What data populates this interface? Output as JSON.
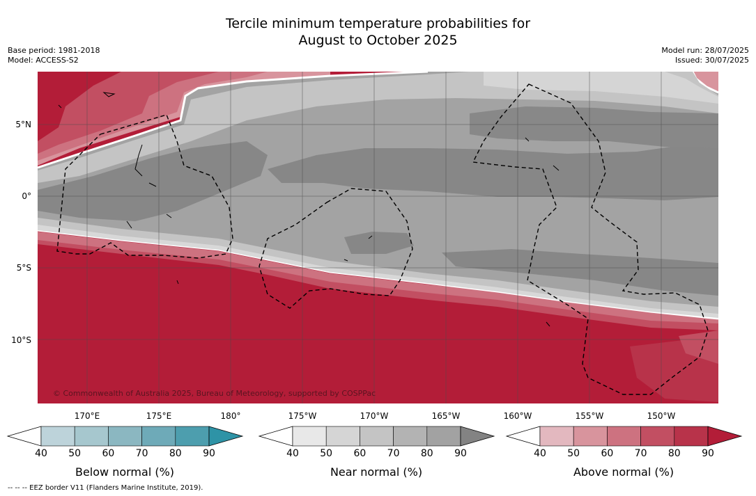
{
  "title_line1": "Tercile minimum temperature probabilities for",
  "title_line2": "August to October 2025",
  "meta": {
    "base_period": "Base period: 1981-2018",
    "model": "Model: ACCESS-S2",
    "model_run": "Model run: 28/07/2025",
    "issued": "Issued: 30/07/2025"
  },
  "lat_labels": [
    "5°N",
    "0°",
    "5°S",
    "10°S"
  ],
  "lon_labels": [
    "170°E",
    "175°E",
    "180°",
    "175°W",
    "170°W",
    "165°W",
    "160°W",
    "155°W",
    "150°W"
  ],
  "credit": "© Commonwealth of Australia 2025, Bureau of Meteorology, supported by COSPPac",
  "colorbars": [
    {
      "title": "Below normal (%)",
      "ticks": [
        "40",
        "50",
        "60",
        "70",
        "80",
        "90"
      ],
      "colors": [
        "#ffffff",
        "#bdd3da",
        "#a6c7ce",
        "#8bb7c1",
        "#6eaab8",
        "#4d9eae",
        "#2e93a6"
      ]
    },
    {
      "title": "Near normal (%)",
      "ticks": [
        "40",
        "50",
        "60",
        "70",
        "80",
        "90"
      ],
      "colors": [
        "#ffffff",
        "#e8e8e8",
        "#d5d5d5",
        "#c4c4c4",
        "#b3b3b3",
        "#a2a2a2",
        "#838383"
      ]
    },
    {
      "title": "Above normal (%)",
      "ticks": [
        "40",
        "50",
        "60",
        "70",
        "80",
        "90"
      ],
      "colors": [
        "#ffffff",
        "#e3b8bf",
        "#d8949d",
        "#cd7280",
        "#c24f62",
        "#b8334a",
        "#b31d38"
      ]
    }
  ],
  "eez_note": "-- -- -- EEZ border V11 (Flanders Marine Institute, 2019)."
}
